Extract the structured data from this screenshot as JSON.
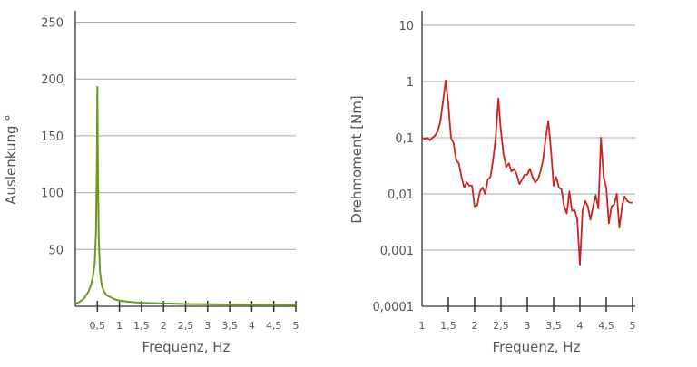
{
  "chart_data": [
    {
      "type": "line",
      "xlabel": "Frequenz, Hz",
      "ylabel": "Auslenkung °",
      "xlim": [
        0,
        5
      ],
      "ylim": [
        0,
        260
      ],
      "y_scale": "linear",
      "grid": "horizontal",
      "line_color": "#6a9a1f",
      "x_ticks": [
        "0,5",
        "1",
        "1,5",
        "2",
        "2,5",
        "3",
        "3,5",
        "4",
        "4,5",
        "5"
      ],
      "y_ticks": [
        "50",
        "100",
        "150",
        "200",
        "250"
      ],
      "series": [
        {
          "x": [
            0,
            0.1,
            0.2,
            0.3,
            0.35,
            0.4,
            0.44,
            0.47,
            0.49,
            0.5,
            0.51,
            0.53,
            0.56,
            0.6,
            0.65,
            0.7,
            0.8,
            0.9,
            1.0,
            1.2,
            1.5,
            2.0,
            2.5,
            3.0,
            3.5,
            4.0,
            4.5,
            5.0
          ],
          "y": [
            2,
            4,
            7,
            13,
            18,
            26,
            38,
            65,
            130,
            193,
            130,
            60,
            30,
            18,
            13,
            10,
            8,
            6,
            5,
            4,
            3,
            2.5,
            2,
            1.8,
            1.6,
            1.5,
            1.5,
            1.4
          ]
        }
      ]
    },
    {
      "type": "line",
      "xlabel": "Frequenz, Hz",
      "ylabel": "Drehmoment [Nm]",
      "xlim": [
        1,
        5
      ],
      "ylim": [
        0.0001,
        10
      ],
      "y_scale": "log",
      "grid": "horizontal",
      "line_color": "#cc2222",
      "x_ticks": [
        "1",
        "1,5",
        "2",
        "2,5",
        "3",
        "3,5",
        "4",
        "4,5",
        "5"
      ],
      "y_ticks": [
        "0,0001",
        "0,001",
        "0,01",
        "0,1",
        "1",
        "10"
      ],
      "series": [
        {
          "x": [
            1.0,
            1.05,
            1.1,
            1.15,
            1.2,
            1.25,
            1.3,
            1.35,
            1.4,
            1.45,
            1.5,
            1.55,
            1.6,
            1.65,
            1.7,
            1.75,
            1.8,
            1.85,
            1.9,
            1.95,
            2.0,
            2.05,
            2.1,
            2.15,
            2.2,
            2.25,
            2.3,
            2.35,
            2.4,
            2.45,
            2.5,
            2.55,
            2.6,
            2.65,
            2.7,
            2.75,
            2.8,
            2.85,
            2.9,
            2.95,
            3.0,
            3.05,
            3.1,
            3.15,
            3.2,
            3.25,
            3.3,
            3.35,
            3.4,
            3.45,
            3.5,
            3.55,
            3.6,
            3.65,
            3.7,
            3.75,
            3.8,
            3.85,
            3.9,
            3.95,
            4.0,
            4.05,
            4.1,
            4.15,
            4.2,
            4.25,
            4.3,
            4.35,
            4.4,
            4.45,
            4.5,
            4.55,
            4.6,
            4.65,
            4.7,
            4.75,
            4.8,
            4.85,
            4.9,
            4.95,
            5.0
          ],
          "y": [
            0.1,
            0.095,
            0.1,
            0.09,
            0.1,
            0.11,
            0.13,
            0.2,
            0.45,
            1.05,
            0.4,
            0.1,
            0.08,
            0.04,
            0.035,
            0.02,
            0.013,
            0.016,
            0.014,
            0.014,
            0.006,
            0.0063,
            0.011,
            0.013,
            0.01,
            0.018,
            0.02,
            0.04,
            0.1,
            0.5,
            0.13,
            0.05,
            0.03,
            0.035,
            0.025,
            0.028,
            0.022,
            0.015,
            0.018,
            0.022,
            0.022,
            0.028,
            0.02,
            0.016,
            0.018,
            0.025,
            0.04,
            0.1,
            0.2,
            0.06,
            0.014,
            0.02,
            0.013,
            0.012,
            0.006,
            0.0045,
            0.011,
            0.005,
            0.0052,
            0.0035,
            0.00055,
            0.005,
            0.0075,
            0.006,
            0.0035,
            0.006,
            0.0095,
            0.0055,
            0.1,
            0.02,
            0.013,
            0.003,
            0.006,
            0.0065,
            0.01,
            0.0025,
            0.006,
            0.009,
            0.0075,
            0.007,
            0.007
          ]
        }
      ]
    }
  ]
}
